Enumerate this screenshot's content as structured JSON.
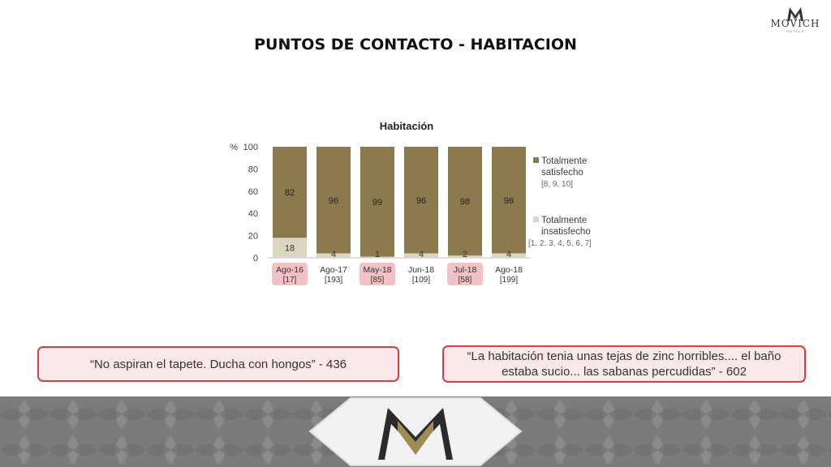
{
  "slide": {
    "title": "PUNTOS DE CONTACTO - HABITACION",
    "brand": {
      "name": "MOVICH",
      "sub": "HOTELS"
    }
  },
  "quotes": [
    "“No aspiran el tapete. Ducha con hongos” - 436",
    "“La habitación tenia unas tejas de zinc horribles.... el baño estaba sucio... las sabanas percudidas” - 602"
  ],
  "chart_data": {
    "type": "bar",
    "stacked": true,
    "title": "Habitación",
    "y_unit_label": "%",
    "ylim": [
      0,
      100
    ],
    "yticks": [
      0,
      20,
      40,
      60,
      80,
      100
    ],
    "categories": [
      "Ago-16",
      "Ago-17",
      "May-18",
      "Jun-18",
      "Jul-18",
      "Ago-18"
    ],
    "bases": [
      "[17]",
      "[193]",
      "[85]",
      "[109]",
      "[58]",
      "[199]"
    ],
    "highlighted": [
      true,
      false,
      true,
      false,
      true,
      false
    ],
    "series": [
      {
        "name": "Totalmente insatisfecho",
        "note": "[1, 2, 3, 4, 5, 6, 7]",
        "color": "#ddd5c2",
        "values": [
          18,
          4,
          1,
          4,
          2,
          4
        ]
      },
      {
        "name": "Totalmente satisfecho",
        "note": "[8, 9, 10]",
        "color": "#8c7a4f",
        "values": [
          82,
          96,
          99,
          96,
          98,
          96
        ]
      }
    ],
    "legend_position": "right",
    "highlight_color": "#f0c2c6"
  }
}
